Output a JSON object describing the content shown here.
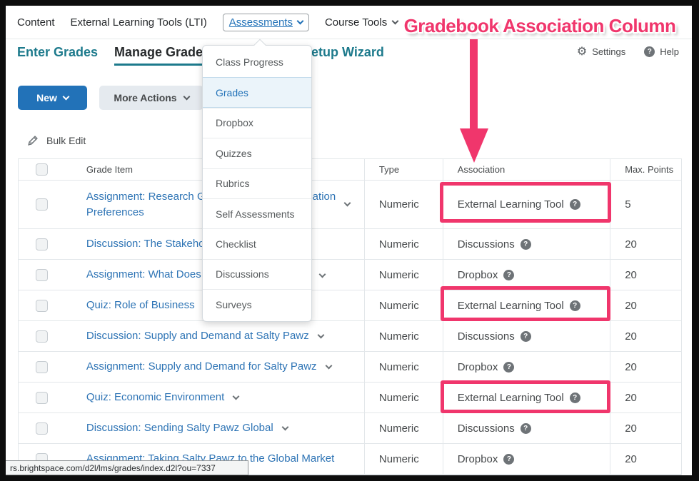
{
  "nav": {
    "content": "Content",
    "lti": "External Learning Tools (LTI)",
    "assessments": "Assessments",
    "course_tools": "Course Tools"
  },
  "tabs": {
    "enter_grades": "Enter Grades",
    "manage_grades": "Manage Grades",
    "setup_wizard": "Setup Wizard"
  },
  "utilities": {
    "settings": "Settings",
    "help": "Help"
  },
  "toolbar": {
    "new_label": "New",
    "more_actions_label": "More Actions",
    "bulk_edit_label": "Bulk Edit"
  },
  "dropdown": {
    "items": [
      {
        "label": "Class Progress",
        "active": false
      },
      {
        "label": "Grades",
        "active": true
      },
      {
        "label": "Dropbox",
        "active": false
      },
      {
        "label": "Quizzes",
        "active": false
      },
      {
        "label": "Rubrics",
        "active": false
      },
      {
        "label": "Self Assessments",
        "active": false
      },
      {
        "label": "Checklist",
        "active": false
      },
      {
        "label": "Discussions",
        "active": false
      },
      {
        "label": "Surveys",
        "active": false
      }
    ]
  },
  "table": {
    "columns": [
      "Grade Item",
      "Type",
      "Association",
      "Max. Points"
    ],
    "rows": [
      {
        "item": "Assignment: Research Generational Communication\nPreferences",
        "chevron": true,
        "type": "Numeric",
        "association": "External Learning Tool",
        "highlight": true,
        "points": "5"
      },
      {
        "item": "Discussion: The Stakeholders of Salty Pawz",
        "chevron": false,
        "type": "Numeric",
        "association": "Discussions",
        "highlight": false,
        "points": "20"
      },
      {
        "item": "Assignment: What Does Salty Pawz Do?",
        "chevron": true,
        "type": "Numeric",
        "association": "Dropbox",
        "highlight": false,
        "points": "20"
      },
      {
        "item": "Quiz: Role of Business",
        "chevron": false,
        "type": "Numeric",
        "association": "External Learning Tool",
        "highlight": true,
        "points": "20"
      },
      {
        "item": "Discussion: Supply and Demand at Salty Pawz",
        "chevron": true,
        "type": "Numeric",
        "association": "Discussions",
        "highlight": false,
        "points": "20"
      },
      {
        "item": "Assignment: Supply and Demand for Salty Pawz",
        "chevron": true,
        "type": "Numeric",
        "association": "Dropbox",
        "highlight": false,
        "points": "20"
      },
      {
        "item": "Quiz: Economic Environment",
        "chevron": true,
        "type": "Numeric",
        "association": "External Learning Tool",
        "highlight": true,
        "points": "20"
      },
      {
        "item": "Discussion: Sending Salty Pawz Global",
        "chevron": true,
        "type": "Numeric",
        "association": "Discussions",
        "highlight": false,
        "points": "20"
      },
      {
        "item": "Assignment: Taking Salty Pawz to the Global Market",
        "chevron": false,
        "type": "Numeric",
        "association": "Dropbox",
        "highlight": false,
        "points": "20"
      }
    ]
  },
  "annotation": {
    "title": "Gradebook Association Column",
    "accent_pink": "#F0366C"
  },
  "colors": {
    "link_blue": "#2E74B5",
    "button_blue": "#2272B8",
    "tab_teal": "#1D7A8C"
  },
  "statusbar": {
    "url": "rs.brightspace.com/d2l/lms/grades/index.d2l?ou=7337"
  }
}
